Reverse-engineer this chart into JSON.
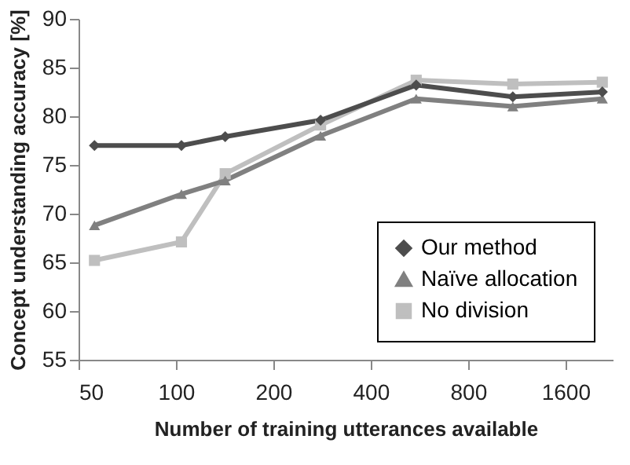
{
  "chart_data": {
    "type": "line",
    "xlabel": "Number of training utterances available",
    "ylabel": "Concept understanding accuracy [%]",
    "x": [
      56,
      104,
      142,
      280,
      553,
      1100,
      2080
    ],
    "log": "x",
    "xlim": [
      50,
      2240
    ],
    "xticks": [
      50,
      100,
      200,
      400,
      800,
      1600
    ],
    "ylim": [
      55,
      90
    ],
    "yticks": [
      55,
      60,
      65,
      70,
      75,
      80,
      85,
      90
    ],
    "grid": false,
    "legend": "bottom right",
    "line_style": "solid",
    "series": [
      {
        "name": "Our method",
        "color": "#4d4d4d",
        "marker": "diamond",
        "values": [
          77.0,
          77.0,
          77.9,
          79.6,
          83.2,
          82.0,
          82.5
        ]
      },
      {
        "name": "Naïve allocation",
        "color": "#808080",
        "marker": "triangle",
        "values": [
          68.8,
          72.0,
          73.4,
          78.0,
          81.8,
          81.0,
          81.8
        ]
      },
      {
        "name": "No division",
        "color": "#bfbfbf",
        "marker": "square",
        "values": [
          65.2,
          67.1,
          74.1,
          79.1,
          83.7,
          83.3,
          83.5
        ]
      }
    ]
  }
}
